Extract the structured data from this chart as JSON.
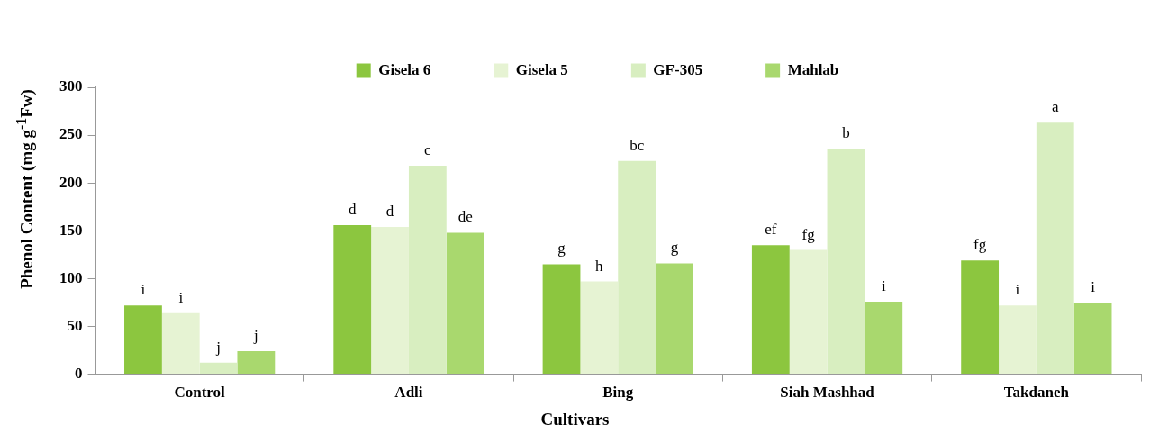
{
  "chart_data": {
    "type": "bar",
    "xlabel": "Cultivars",
    "ylabel": "Phenol Content (mg g$^{-1}$Fw)",
    "categories": [
      "Control",
      "Adli",
      "Bing",
      "Siah Mashhad",
      "Takdaneh"
    ],
    "series": [
      {
        "name": "Gisela 6",
        "color": "#8cc63f",
        "values": [
          72,
          156,
          115,
          135,
          119
        ],
        "value_labels": [
          "i",
          "d",
          "g",
          "ef",
          "fg"
        ]
      },
      {
        "name": "Gisela 5",
        "color": "#e6f3d3",
        "values": [
          64,
          154,
          97,
          130,
          72
        ],
        "value_labels": [
          "i",
          "d",
          "h",
          "fg",
          "i"
        ]
      },
      {
        "name": "GF-305",
        "color": "#d8eec0",
        "values": [
          12,
          218,
          223,
          236,
          263
        ],
        "value_labels": [
          "j",
          "c",
          "bc",
          "b",
          "a"
        ]
      },
      {
        "name": "Mahlab",
        "color": "#a9d86e",
        "values": [
          24,
          148,
          116,
          76,
          75
        ],
        "value_labels": [
          "j",
          "de",
          "g",
          "i",
          "i"
        ]
      }
    ],
    "ylim": [
      0,
      300
    ],
    "yticks": [
      0,
      50,
      100,
      150,
      200,
      250,
      300
    ],
    "grid": false,
    "legend": "top"
  }
}
